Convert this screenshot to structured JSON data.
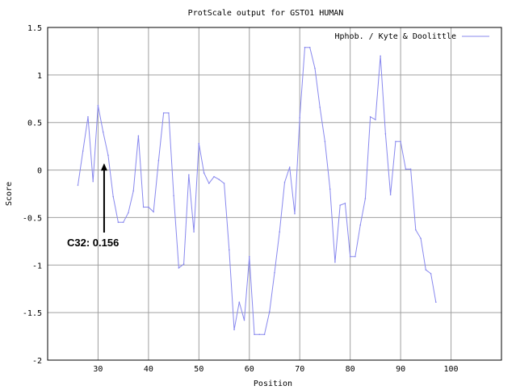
{
  "chart_data": {
    "type": "line",
    "title": "ProtScale output for GSTO1 HUMAN",
    "xlabel": "Position",
    "ylabel": "Score",
    "xlim": [
      20,
      110
    ],
    "ylim": [
      -2,
      1.5
    ],
    "xticks": [
      30,
      40,
      50,
      60,
      70,
      80,
      90,
      100
    ],
    "yticks": [
      1.5,
      1,
      0.5,
      0,
      -0.5,
      -1,
      -1.5,
      -2
    ],
    "xtick_labels": [
      "30",
      "40",
      "50",
      "60",
      "70",
      "80",
      "90",
      "100"
    ],
    "ytick_labels": [
      "1.5",
      "1",
      "0.5",
      "0",
      "-0.5",
      "-1",
      "-1.5",
      "-2"
    ],
    "grid": true,
    "legend_position": "top-right",
    "series": [
      {
        "name": "Hphob. / Kyte & Doolittle",
        "color": "#8888ee",
        "x": [
          26,
          27,
          28,
          29,
          30,
          31,
          32,
          33,
          34,
          35,
          36,
          37,
          38,
          39,
          40,
          41,
          42,
          43,
          44,
          45,
          46,
          47,
          48,
          49,
          50,
          51,
          52,
          53,
          54,
          55,
          56,
          57,
          58,
          59,
          60,
          61,
          62,
          63,
          64,
          65,
          66,
          67,
          68,
          69,
          70,
          71,
          72,
          73,
          74,
          75,
          76,
          77,
          78,
          79,
          80,
          81,
          82,
          83,
          84,
          85,
          86,
          87,
          88,
          89,
          90,
          91,
          92,
          93,
          94,
          95,
          96,
          97
        ],
        "y": [
          -0.16,
          0.2,
          0.56,
          -0.12,
          0.68,
          0.4,
          0.156,
          -0.28,
          -0.55,
          -0.55,
          -0.45,
          -0.22,
          0.36,
          -0.39,
          -0.39,
          -0.44,
          0.1,
          0.6,
          0.6,
          -0.27,
          -1.03,
          -0.99,
          -0.05,
          -0.65,
          0.28,
          -0.03,
          -0.14,
          -0.07,
          -0.1,
          -0.14,
          -0.84,
          -1.68,
          -1.39,
          -1.58,
          -0.91,
          -1.73,
          -1.73,
          -1.73,
          -1.49,
          -1.08,
          -0.65,
          -0.13,
          0.03,
          -0.46,
          0.55,
          1.29,
          1.29,
          1.07,
          0.66,
          0.3,
          -0.2,
          -0.97,
          -0.37,
          -0.35,
          -0.91,
          -0.91,
          -0.58,
          -0.3,
          0.56,
          0.53,
          1.2,
          0.38,
          -0.26,
          0.3,
          0.3,
          0.01,
          0.01,
          -0.63,
          -0.72,
          -1.05,
          -1.09,
          -1.39
        ]
      }
    ],
    "annotations": [
      {
        "text": "C32: 0.156",
        "x": 32,
        "y": 0.156
      }
    ]
  }
}
